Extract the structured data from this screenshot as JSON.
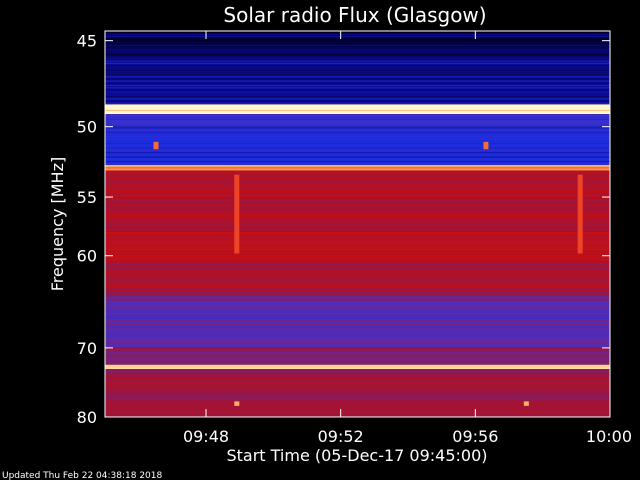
{
  "chart_data": {
    "type": "heatmap",
    "title": "Solar radio Flux (Glasgow)",
    "xlabel": "Start Time (05-Dec-17 09:45:00)",
    "ylabel": "Frequency [MHz]",
    "x_tick_labels": [
      "09:48",
      "09:52",
      "09:56",
      "10:00"
    ],
    "x_ticks_minutes": [
      3,
      7,
      11,
      15
    ],
    "x_range_minutes": [
      0,
      15
    ],
    "y_ticks": [
      45,
      50,
      55,
      60,
      70,
      80
    ],
    "y_tick_labels": [
      "45",
      "50",
      "55",
      "60",
      "70",
      "80"
    ],
    "y_range_mhz": [
      44.5,
      80
    ],
    "y_scale": "reciprocal",
    "grid": false,
    "colormap": [
      "#000020",
      "#0a0a90",
      "#1f2fe0",
      "#5a2cb0",
      "#9a1640",
      "#c80e10",
      "#e8261a",
      "#ffa050",
      "#fff8d0"
    ],
    "bands": [
      {
        "f0": 44.5,
        "f1": 45.8,
        "level": 0.05
      },
      {
        "f0": 45.8,
        "f1": 48.6,
        "level": 0.13
      },
      {
        "f0": 48.6,
        "f1": 49.2,
        "level": 1.0
      },
      {
        "f0": 49.2,
        "f1": 50.0,
        "level": 0.3
      },
      {
        "f0": 50.0,
        "f1": 52.6,
        "level": 0.24
      },
      {
        "f0": 52.6,
        "f1": 53.0,
        "level": 0.85
      },
      {
        "f0": 53.0,
        "f1": 55.0,
        "level": 0.58
      },
      {
        "f0": 55.0,
        "f1": 57.8,
        "level": 0.54
      },
      {
        "f0": 57.8,
        "f1": 60.5,
        "level": 0.6
      },
      {
        "f0": 60.5,
        "f1": 64.0,
        "level": 0.54
      },
      {
        "f0": 64.0,
        "f1": 64.8,
        "level": 0.42
      },
      {
        "f0": 64.8,
        "f1": 70.0,
        "level": 0.36
      },
      {
        "f0": 70.0,
        "f1": 72.2,
        "level": 0.44
      },
      {
        "f0": 72.2,
        "f1": 72.8,
        "level": 0.92
      },
      {
        "f0": 72.8,
        "f1": 80.0,
        "level": 0.53
      }
    ],
    "features": [
      {
        "t": 3.9,
        "f0": 53.3,
        "f1": 59.8,
        "level": 0.78
      },
      {
        "t": 14.1,
        "f0": 53.3,
        "f1": 59.8,
        "level": 0.78
      },
      {
        "t": 1.5,
        "f0": 51.0,
        "f1": 51.5,
        "level": 0.82
      },
      {
        "t": 11.3,
        "f0": 51.0,
        "f1": 51.5,
        "level": 0.82
      },
      {
        "t": 3.9,
        "f0": 77.5,
        "f1": 78.2,
        "level": 0.9
      },
      {
        "t": 12.5,
        "f0": 77.5,
        "f1": 78.2,
        "level": 0.9
      }
    ]
  },
  "footer": {
    "updated": "Updated Thu Feb 22 04:38:18 2018"
  }
}
